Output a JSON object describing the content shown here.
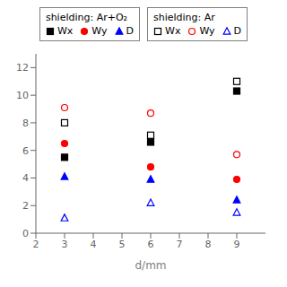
{
  "chart_data": {
    "type": "scatter",
    "xlabel": "d/mm",
    "xlim": [
      2,
      10
    ],
    "ylim": [
      0,
      13
    ],
    "xticks": [
      2,
      3,
      4,
      5,
      6,
      7,
      8,
      9
    ],
    "yticks": [
      0,
      2,
      4,
      6,
      8,
      10,
      12
    ],
    "grid": false,
    "series": [
      {
        "color": "black",
        "marker": "square",
        "x": [
          3
        ],
        "values": [
          5.5
        ]
      },
      {
        "color": "red",
        "marker": "circle",
        "x": [
          3
        ],
        "values": [
          6.5
        ]
      },
      {
        "color": "blue",
        "marker": "triangle",
        "x": [
          3
        ],
        "values": [
          4.1
        ]
      },
      {
        "color": "black",
        "marker": "square_open",
        "x": [
          3,
          6,
          9
        ],
        "values": [
          8.0,
          7.1,
          11.0
        ]
      },
      {
        "color": "red",
        "marker": "circle_open",
        "x": [
          3,
          6,
          9
        ],
        "values": [
          9.1,
          8.7,
          5.7
        ]
      },
      {
        "color": "blue",
        "marker": "triangle_open",
        "x": [
          3,
          6,
          9
        ],
        "values": [
          1.1,
          2.2,
          1.5
        ]
      },
      {
        "color": "black",
        "marker": "square",
        "x": [
          6,
          9
        ],
        "values": [
          6.6,
          10.3
        ]
      },
      {
        "color": "red",
        "marker": "circle",
        "x": [
          6,
          9
        ],
        "values": [
          4.8,
          3.9
        ]
      },
      {
        "color": "blue",
        "marker": "triangle",
        "x": [
          6,
          9
        ],
        "values": [
          3.9,
          2.4
        ]
      }
    ],
    "legends": [
      {
        "title": "shielding: Ar+O₂",
        "entries": [
          {
            "name": "Wx",
            "color": "black",
            "marker": "square"
          },
          {
            "name": "Wy",
            "color": "red",
            "marker": "circle"
          },
          {
            "name": "D",
            "color": "blue",
            "marker": "triangle"
          }
        ]
      },
      {
        "title": "shielding: Ar",
        "entries": [
          {
            "name": "Wx",
            "color": "black",
            "marker": "square_open"
          },
          {
            "name": "Wy",
            "color": "red",
            "marker": "circle_open"
          },
          {
            "name": "D",
            "color": "blue",
            "marker": "triangle_open"
          }
        ]
      }
    ]
  }
}
